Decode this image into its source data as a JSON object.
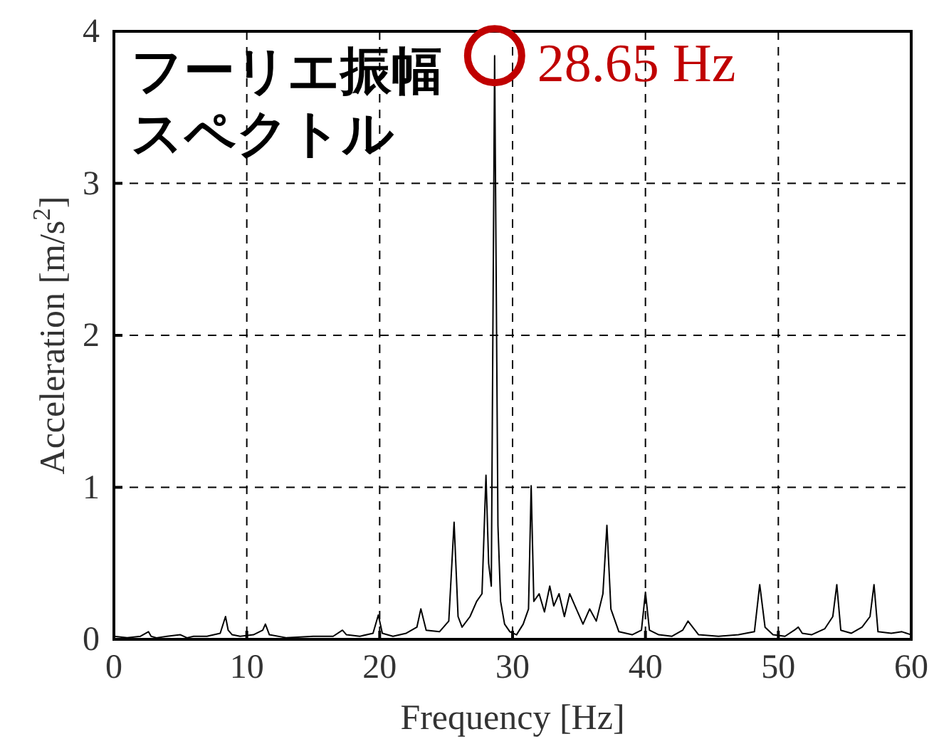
{
  "chart_data": {
    "type": "line",
    "title": "フーリエ振幅スペクトル",
    "xlabel": "Frequency [Hz]",
    "ylabel": "Acceleration [m/s$^{2}$]",
    "xlim": [
      0,
      60
    ],
    "ylim": [
      0,
      4
    ],
    "xticks": [
      0,
      10,
      20,
      30,
      40,
      50,
      60
    ],
    "yticks": [
      0,
      1,
      2,
      3,
      4
    ],
    "grid": true,
    "line_style": "solid",
    "marker": "none",
    "annotations": [
      {
        "text": "28.65 Hz",
        "x": 28.65,
        "y": 3.84
      }
    ],
    "series": [
      {
        "color": "#000000",
        "x": [
          0,
          1,
          2,
          2.6,
          2.8,
          3.2,
          4,
          5,
          5.5,
          6,
          7,
          8,
          8.4,
          8.6,
          8.9,
          9.5,
          10.5,
          11.2,
          11.4,
          11.7,
          13,
          15,
          16.5,
          17.2,
          17.5,
          18.5,
          19.5,
          19.9,
          20.2,
          21,
          22,
          22.8,
          23.1,
          23.5,
          24.5,
          25.2,
          25.6,
          25.9,
          26.2,
          26.8,
          27.3,
          27.7,
          28.0,
          28.2,
          28.4,
          28.65,
          28.9,
          29.1,
          29.4,
          29.8,
          30.3,
          30.8,
          31.2,
          31.4,
          31.6,
          32,
          32.4,
          32.8,
          33.1,
          33.5,
          33.9,
          34.3,
          34.8,
          35.3,
          35.8,
          36.3,
          36.8,
          37.1,
          37.4,
          38,
          39,
          39.7,
          40,
          40.3,
          41,
          42,
          42.8,
          43.2,
          44,
          45.5,
          47,
          48.2,
          48.6,
          49,
          49.6,
          50.5,
          51.2,
          51.5,
          51.8,
          52.5,
          53.5,
          54.1,
          54.4,
          54.7,
          55.5,
          56.3,
          56.9,
          57.2,
          57.5,
          58.5,
          59.3,
          60
        ],
        "values": [
          0.02,
          0.01,
          0.02,
          0.05,
          0.02,
          0.01,
          0.02,
          0.03,
          0.01,
          0.02,
          0.02,
          0.04,
          0.15,
          0.06,
          0.03,
          0.02,
          0.03,
          0.06,
          0.1,
          0.03,
          0.01,
          0.02,
          0.02,
          0.06,
          0.03,
          0.02,
          0.04,
          0.16,
          0.04,
          0.02,
          0.04,
          0.08,
          0.2,
          0.06,
          0.05,
          0.12,
          0.77,
          0.15,
          0.08,
          0.15,
          0.25,
          0.3,
          1.08,
          0.5,
          0.35,
          3.84,
          0.75,
          0.25,
          0.1,
          0.05,
          0.03,
          0.1,
          0.2,
          1.01,
          0.25,
          0.3,
          0.18,
          0.35,
          0.22,
          0.3,
          0.15,
          0.3,
          0.2,
          0.1,
          0.2,
          0.12,
          0.3,
          0.75,
          0.2,
          0.05,
          0.03,
          0.06,
          0.31,
          0.06,
          0.03,
          0.02,
          0.06,
          0.12,
          0.03,
          0.02,
          0.03,
          0.05,
          0.36,
          0.08,
          0.03,
          0.02,
          0.06,
          0.08,
          0.04,
          0.03,
          0.07,
          0.15,
          0.36,
          0.06,
          0.04,
          0.08,
          0.15,
          0.36,
          0.05,
          0.04,
          0.05,
          0.03
        ]
      }
    ]
  }
}
